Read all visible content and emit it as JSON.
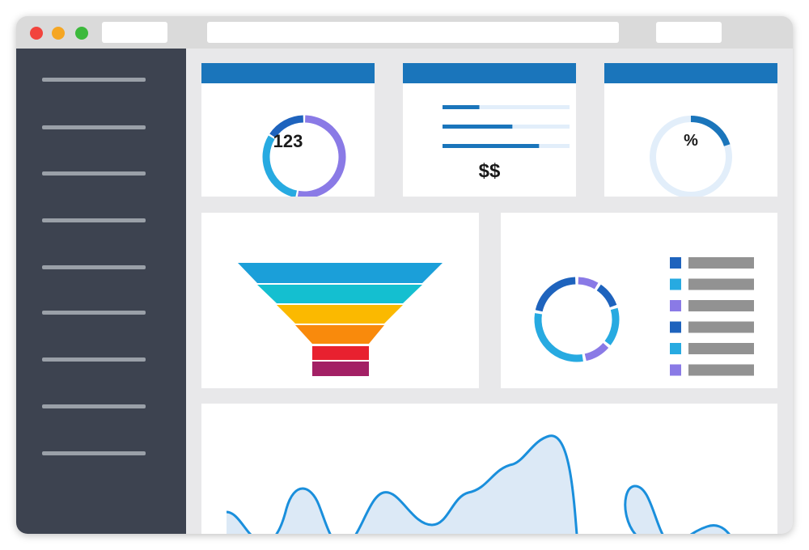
{
  "window": {
    "traffic_lights": [
      "#f2443d",
      "#f5a623",
      "#3cb93c"
    ],
    "titlebar_color": "#dadada"
  },
  "sidebar": {
    "item_count_lines": 9,
    "color": "#3d4350",
    "line_color": "#9aa0a8"
  },
  "colors": {
    "header": "#1a75bb",
    "dark_blue": "#1e63bd",
    "light_blue": "#27aae1",
    "purple": "#8a7ae6",
    "track": "#e2eefa",
    "legend_bar": "#929292"
  },
  "cards": {
    "count": {
      "value": "123",
      "segments": [
        {
          "color": "#8a7ae6",
          "fraction": 0.53
        },
        {
          "color": "#27aae1",
          "fraction": 0.31
        },
        {
          "color": "#1e63bd",
          "fraction": 0.16
        }
      ]
    },
    "money": {
      "value": "$$",
      "bars": [
        0.29,
        0.55,
        0.76
      ]
    },
    "percent": {
      "value": "%",
      "fraction": 0.2
    }
  },
  "funnel": {
    "colors": [
      "#1b9fd9",
      "#14bfd0",
      "#fbb900",
      "#f98a0c",
      "#e8212f",
      "#a32065"
    ]
  },
  "donut": {
    "segments": [
      {
        "color": "#8a7ae6",
        "fraction": 0.09
      },
      {
        "color": "#1e63bd",
        "fraction": 0.11
      },
      {
        "color": "#27aae1",
        "fraction": 0.16
      },
      {
        "color": "#8a7ae6",
        "fraction": 0.11
      },
      {
        "color": "#27aae1",
        "fraction": 0.31
      },
      {
        "color": "#1e63bd",
        "fraction": 0.22
      }
    ],
    "legend": [
      "#1e63bd",
      "#27aae1",
      "#8a7ae6",
      "#1e63bd",
      "#27aae1",
      "#8a7ae6"
    ]
  },
  "area_chart": {
    "line_color": "#1a8fdc",
    "fill_color": "#dce9f6"
  }
}
